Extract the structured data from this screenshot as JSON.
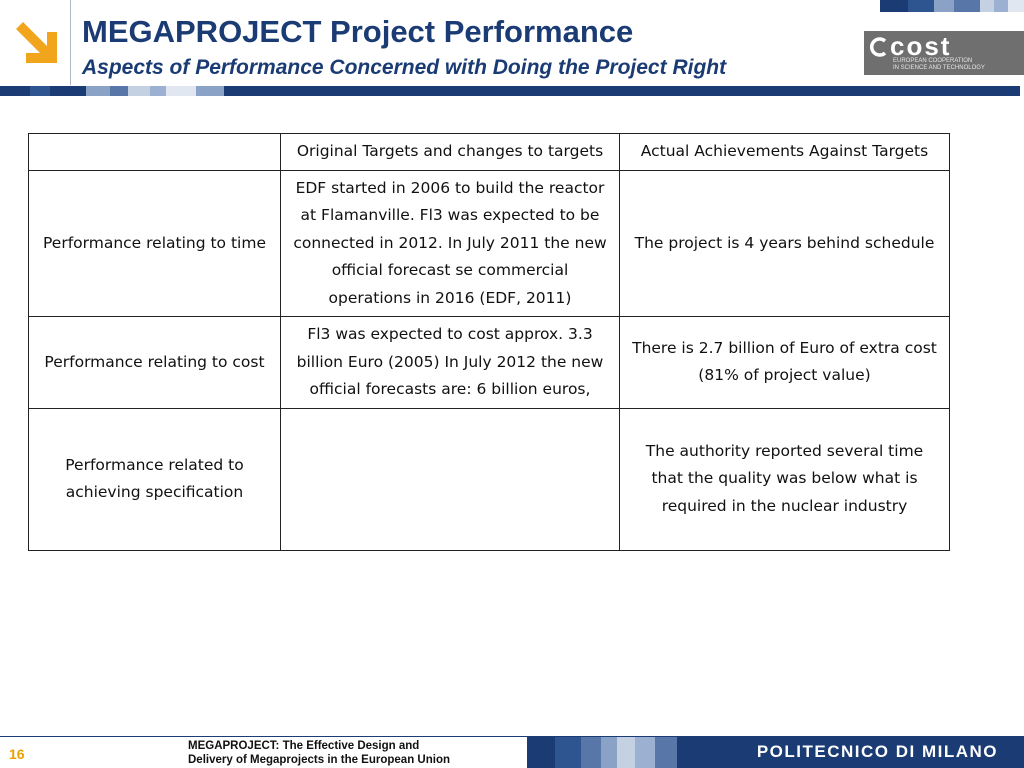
{
  "header": {
    "title": "MEGAPROJECT Project Performance",
    "subtitle": "Aspects of Performance Concerned with Doing the Project Right"
  },
  "logos": {
    "left_icon": "arrow-down-right-icon",
    "cost": {
      "name": "cost",
      "line1": "EUROPEAN COOPERATION",
      "line2": "IN SCIENCE AND TECHNOLOGY"
    },
    "polimi": "POLITECNICO DI MILANO"
  },
  "colors": {
    "brand_blue": "#1a3b73",
    "accent_orange": "#f0a51d",
    "page_number": "#e8a200"
  },
  "table": {
    "headers": [
      "",
      "Original Targets and changes to targets",
      "Actual Achievements Against Targets"
    ],
    "rows": [
      {
        "label": "Performance relating to time",
        "original": "EDF started in 2006 to build the reactor at Flamanville. Fl3 was expected to be connected in 2012. In July 2011 the new official forecast se commercial operations in 2016 (EDF, 2011)",
        "actual": "The project is 4 years behind schedule"
      },
      {
        "label": "Performance relating to cost",
        "original": "Fl3 was expected to cost approx. 3.3 billion Euro (2005) In July 2012 the new official forecasts are: 6 billion euros,",
        "actual": "There is 2.7 billion of Euro of extra cost (81% of project value)"
      },
      {
        "label": "Performance related to achieving  specification",
        "original": "",
        "actual": "The authority reported several time that the quality was below what is required in the nuclear industry"
      }
    ]
  },
  "footer": {
    "page_number": "16",
    "line1": "MEGAPROJECT: The Effective Design and",
    "line2": "Delivery of Megaprojects in the European Union"
  }
}
